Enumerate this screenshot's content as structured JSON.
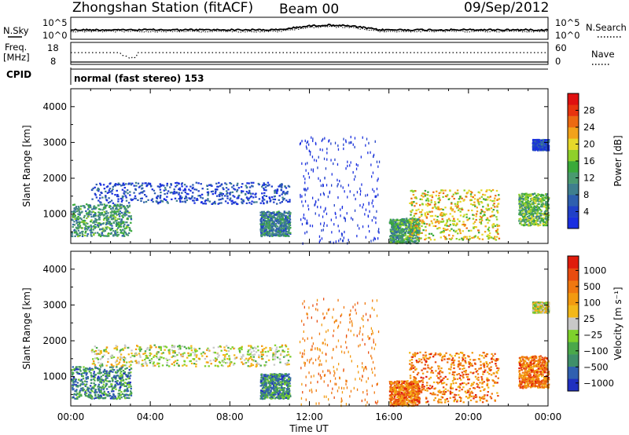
{
  "header": {
    "station": "Zhongshan Station (fitACF)",
    "beam": "Beam 00",
    "date": "09/Sep/2012"
  },
  "strip_panels": {
    "noise": {
      "left_label": "N.Sky",
      "left_ticks": [
        "10^5",
        "10^0"
      ],
      "right_label": "N.Search",
      "right_ticks": [
        "10^5",
        "10^0"
      ]
    },
    "freq": {
      "left_label_line1": "Freq.",
      "left_label_line2": "[MHz]",
      "left_ticks": [
        "18",
        "8"
      ],
      "right_label": "Nave",
      "right_ticks": [
        "60",
        "0"
      ]
    },
    "cpid": {
      "left_label": "CPID",
      "mode_text": "normal (fast stereo) 153"
    }
  },
  "chart_data": [
    {
      "type": "heatmap",
      "name": "Power",
      "ylabel": "Slant Range [km]",
      "xlabel": "Time UT",
      "xlim": [
        "00:00",
        "24:00"
      ],
      "ylim": [
        180,
        4500
      ],
      "y_ticks": [
        1000,
        2000,
        3000,
        4000
      ],
      "x_tick_labels": [
        "00:00",
        "04:00",
        "08:00",
        "12:00",
        "16:00",
        "20:00",
        "00:00"
      ],
      "colorbar": {
        "label": "Power [dB]",
        "tick_labels": [
          "4",
          "8",
          "12",
          "16",
          "20",
          "24",
          "28"
        ],
        "bands": [
          "#1a2fe0",
          "#2040c8",
          "#2e5fae",
          "#3f7f8e",
          "#4a9a70",
          "#3aaa3a",
          "#8fd02a",
          "#e6d82a",
          "#f2a21a",
          "#ec6a12",
          "#e8340e",
          "#e01010"
        ]
      },
      "echo_regions": [
        {
          "t0": 0.0,
          "t1": 3.0,
          "r0": 400,
          "r1": 1300,
          "level": 4
        },
        {
          "t0": 1.0,
          "t1": 11.0,
          "r0": 1300,
          "r1": 1900,
          "level": 1
        },
        {
          "t0": 9.5,
          "t1": 11.0,
          "r0": 400,
          "r1": 1100,
          "level": 3
        },
        {
          "t0": 11.5,
          "t1": 15.5,
          "r0": 200,
          "r1": 3200,
          "level": 0
        },
        {
          "t0": 16.0,
          "t1": 17.5,
          "r0": 200,
          "r1": 900,
          "level": 4
        },
        {
          "t0": 17.0,
          "t1": 21.5,
          "r0": 300,
          "r1": 1700,
          "level": 7
        },
        {
          "t0": 22.5,
          "t1": 24.0,
          "r0": 700,
          "r1": 1600,
          "level": 5
        },
        {
          "t0": 23.2,
          "t1": 24.0,
          "r0": 2800,
          "r1": 3100,
          "level": 1
        }
      ]
    },
    {
      "type": "heatmap",
      "name": "Velocity",
      "ylabel": "Slant Range [km]",
      "xlabel": "Time UT",
      "xlim": [
        "00:00",
        "24:00"
      ],
      "ylim": [
        180,
        4500
      ],
      "y_ticks": [
        1000,
        2000,
        3000,
        4000
      ],
      "x_tick_labels": [
        "00:00",
        "04:00",
        "08:00",
        "12:00",
        "16:00",
        "20:00",
        "00:00"
      ],
      "colorbar": {
        "label": "Velocity [m s⁻¹]",
        "tick_labels": [
          "1000",
          "500",
          "100",
          "25",
          "−25",
          "−100",
          "−500",
          "−1000"
        ],
        "bands": [
          "#2030c0",
          "#3060b0",
          "#3f8f6a",
          "#4aa84a",
          "#7ed12c",
          "#c8c8c8",
          "#f2b81a",
          "#f29a10",
          "#f07810",
          "#e84c10",
          "#e01c0c"
        ]
      },
      "echo_regions": [
        {
          "t0": 0.0,
          "t1": 3.0,
          "r0": 400,
          "r1": 1300,
          "level": 2
        },
        {
          "t0": 1.0,
          "t1": 11.0,
          "r0": 1300,
          "r1": 1900,
          "level": 5
        },
        {
          "t0": 9.5,
          "t1": 11.0,
          "r0": 400,
          "r1": 1100,
          "level": 2
        },
        {
          "t0": 11.5,
          "t1": 15.5,
          "r0": 200,
          "r1": 3200,
          "level": 8
        },
        {
          "t0": 16.0,
          "t1": 17.5,
          "r0": 200,
          "r1": 900,
          "level": 8
        },
        {
          "t0": 17.0,
          "t1": 21.5,
          "r0": 300,
          "r1": 1700,
          "level": 8
        },
        {
          "t0": 22.5,
          "t1": 24.0,
          "r0": 700,
          "r1": 1600,
          "level": 8
        },
        {
          "t0": 23.2,
          "t1": 24.0,
          "r0": 2800,
          "r1": 3100,
          "level": 5
        }
      ]
    }
  ]
}
